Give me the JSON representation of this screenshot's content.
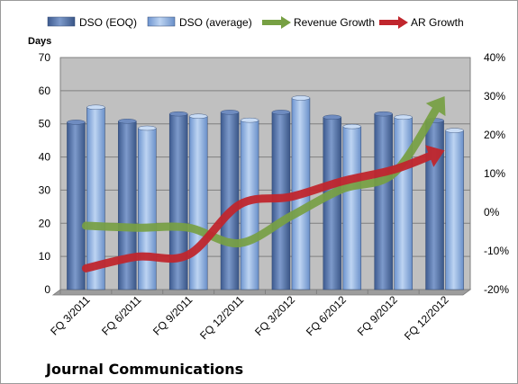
{
  "chart_data": {
    "type": "bar",
    "company": "Journal Communications",
    "ylabel": "Days",
    "ylim": [
      0,
      70
    ],
    "y_ticks": [
      "0",
      "10",
      "20",
      "30",
      "40",
      "50",
      "60",
      "70"
    ],
    "y2lim": [
      -20,
      40
    ],
    "y2_ticks": [
      "-20%",
      "-10%",
      "0%",
      "10%",
      "20%",
      "30%",
      "40%"
    ],
    "categories": [
      "FQ 3/2011",
      "FQ 6/2011",
      "FQ 9/2011",
      "FQ 12/2011",
      "FQ 3/2012",
      "FQ 6/2012",
      "FQ 9/2012",
      "FQ 12/2012"
    ],
    "series": [
      {
        "name": "DSO (EOQ)",
        "kind": "bar",
        "axis": "left",
        "values": [
          50.5,
          50.8,
          53,
          53.5,
          53.5,
          52,
          53,
          51
        ]
      },
      {
        "name": "DSO (average)",
        "kind": "bar",
        "axis": "left",
        "values": [
          55,
          48.7,
          52.3,
          51.1,
          57.8,
          49.2,
          52,
          48
        ]
      },
      {
        "name": "Revenue Growth",
        "kind": "arrow-line",
        "axis": "right",
        "values": [
          -3.5,
          -4,
          -4,
          -8,
          -1,
          6,
          10,
          30
        ]
      },
      {
        "name": "AR Growth",
        "kind": "arrow-line",
        "axis": "right",
        "values": [
          -14.5,
          -11.5,
          -11,
          2,
          4,
          8,
          11,
          16
        ]
      }
    ],
    "legend_position": "top",
    "grid": true,
    "colors": {
      "dso_eoq": "#4f6fa8",
      "dso_average": "#8fb1e2",
      "revenue_growth": "#77a043",
      "ar_growth": "#c0262d",
      "plot_background": "#c0c0c0"
    }
  }
}
